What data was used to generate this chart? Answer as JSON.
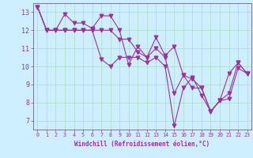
{
  "xlabel": "Windchill (Refroidissement éolien,°C)",
  "x_values": [
    0,
    1,
    2,
    3,
    4,
    5,
    6,
    7,
    8,
    9,
    10,
    11,
    12,
    13,
    14,
    15,
    16,
    17,
    18,
    19,
    20,
    21,
    22,
    23
  ],
  "series": [
    [
      13.3,
      12.0,
      12.0,
      12.9,
      12.4,
      12.4,
      12.1,
      12.8,
      12.8,
      12.0,
      10.1,
      11.1,
      10.5,
      11.6,
      10.6,
      11.1,
      9.5,
      9.3,
      8.8,
      7.5,
      8.1,
      9.6,
      10.2,
      9.6
    ],
    [
      13.3,
      12.0,
      12.0,
      12.0,
      12.0,
      12.0,
      12.0,
      10.4,
      10.0,
      10.5,
      10.5,
      10.5,
      10.2,
      10.5,
      10.0,
      6.7,
      8.8,
      9.4,
      8.4,
      7.5,
      8.1,
      8.2,
      9.9,
      9.6
    ],
    [
      13.3,
      12.0,
      12.0,
      12.0,
      12.0,
      12.0,
      12.0,
      12.0,
      12.0,
      11.5,
      11.5,
      10.8,
      10.5,
      11.0,
      10.5,
      8.5,
      9.5,
      8.8,
      8.8,
      7.5,
      8.1,
      8.5,
      10.2,
      9.6
    ]
  ],
  "line_color": "#993399",
  "bg_color": "#cceeff",
  "grid_color": "#aaddbb",
  "ylim": [
    6.5,
    13.5
  ],
  "xlim": [
    -0.5,
    23.5
  ],
  "yticks": [
    7,
    8,
    9,
    10,
    11,
    12,
    13
  ],
  "xticks": [
    0,
    1,
    2,
    3,
    4,
    5,
    6,
    7,
    8,
    9,
    10,
    11,
    12,
    13,
    14,
    15,
    16,
    17,
    18,
    19,
    20,
    21,
    22,
    23
  ],
  "spine_color": "#666688",
  "xlabel_bg": "#cceeff"
}
